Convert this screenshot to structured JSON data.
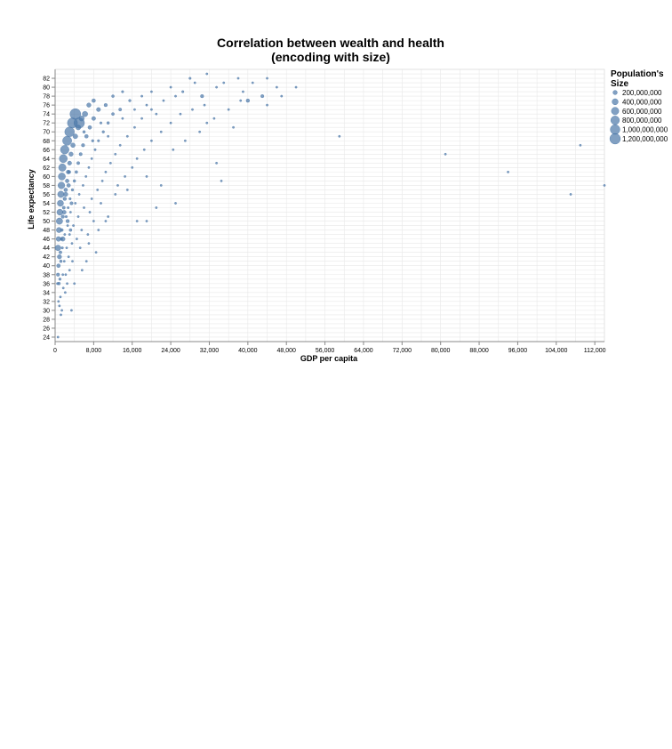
{
  "colors": {
    "mark": "#4c78a8",
    "grid": "#e8e8e8",
    "axis": "#888888",
    "text": "#000000"
  },
  "chart_data": {
    "type": "scatter",
    "title_line1": "Correlation between wealth and health",
    "title_line2": "(encoding with size)",
    "xlabel": "GDP per capita",
    "ylabel": "Life expectancy",
    "xlim": [
      0,
      114000
    ],
    "ylim": [
      23,
      84
    ],
    "x_ticks": [
      0,
      8000,
      16000,
      24000,
      32000,
      40000,
      48000,
      56000,
      64000,
      72000,
      80000,
      88000,
      96000,
      104000,
      112000
    ],
    "x_tick_labels": [
      "0",
      "8,000",
      "16,000",
      "24,000",
      "32,000",
      "40,000",
      "48,000",
      "56,000",
      "64,000",
      "72,000",
      "80,000",
      "88,000",
      "96,000",
      "104,000",
      "112,000"
    ],
    "y_ticks": [
      24,
      26,
      28,
      30,
      32,
      34,
      36,
      38,
      40,
      42,
      44,
      46,
      48,
      50,
      52,
      54,
      56,
      58,
      60,
      62,
      64,
      66,
      68,
      70,
      72,
      74,
      76,
      78,
      80,
      82
    ],
    "y_tick_labels": [
      "24",
      "26",
      "28",
      "30",
      "32",
      "34",
      "36",
      "38",
      "40",
      "42",
      "44",
      "46",
      "48",
      "50",
      "52",
      "54",
      "56",
      "58",
      "60",
      "62",
      "64",
      "66",
      "68",
      "70",
      "72",
      "74",
      "76",
      "78",
      "80",
      "82"
    ],
    "legend": {
      "title_line1": "Population's",
      "title_line2": "Size",
      "position": "right",
      "entries": [
        {
          "label": "200,000,000",
          "value": 200000000
        },
        {
          "label": "400,000,000",
          "value": 400000000
        },
        {
          "label": "600,000,000",
          "value": 600000000
        },
        {
          "label": "800,000,000",
          "value": 800000000
        },
        {
          "label": "1,000,000,000",
          "value": 1000000000
        },
        {
          "label": "1,200,000,000",
          "value": 1200000000
        }
      ]
    },
    "size_domain": [
      0,
      1300000000
    ],
    "points": [
      [
        600,
        24,
        8000000
      ],
      [
        1200,
        29,
        15000000
      ],
      [
        1400,
        30,
        20000000
      ],
      [
        900,
        31,
        30000000
      ],
      [
        3400,
        30,
        10000000
      ],
      [
        700,
        32,
        40000000
      ],
      [
        1100,
        33,
        25000000
      ],
      [
        2100,
        34,
        12000000
      ],
      [
        1700,
        35,
        18000000
      ],
      [
        500,
        36,
        60000000
      ],
      [
        800,
        36,
        90000000
      ],
      [
        2500,
        36,
        15000000
      ],
      [
        4000,
        36,
        10000000
      ],
      [
        600,
        38,
        120000000
      ],
      [
        1000,
        37,
        70000000
      ],
      [
        1600,
        38,
        35000000
      ],
      [
        3000,
        39,
        20000000
      ],
      [
        5600,
        39,
        10000000
      ],
      [
        2200,
        38,
        15000000
      ],
      [
        700,
        40,
        150000000
      ],
      [
        1200,
        41,
        80000000
      ],
      [
        900,
        42,
        200000000
      ],
      [
        1900,
        41,
        40000000
      ],
      [
        2800,
        42,
        25000000
      ],
      [
        6500,
        41,
        12000000
      ],
      [
        3600,
        41,
        18000000
      ],
      [
        600,
        44,
        350000000
      ],
      [
        1100,
        43,
        100000000
      ],
      [
        1500,
        44,
        60000000
      ],
      [
        2400,
        44,
        30000000
      ],
      [
        3500,
        45,
        20000000
      ],
      [
        5200,
        44,
        12000000
      ],
      [
        8500,
        43,
        10000000
      ],
      [
        7000,
        45,
        8000000
      ],
      [
        700,
        46,
        250000000
      ],
      [
        1300,
        46,
        80000000
      ],
      [
        2000,
        47,
        50000000
      ],
      [
        3000,
        47,
        30000000
      ],
      [
        4500,
        46,
        20000000
      ],
      [
        6800,
        47,
        14000000
      ],
      [
        9000,
        48,
        10000000
      ],
      [
        800,
        48,
        300000000
      ],
      [
        1400,
        48,
        90000000
      ],
      [
        2600,
        49,
        40000000
      ],
      [
        3800,
        49,
        25000000
      ],
      [
        5500,
        48,
        15000000
      ],
      [
        8000,
        50,
        12000000
      ],
      [
        10500,
        50,
        10000000
      ],
      [
        900,
        50,
        450000000
      ],
      [
        1600,
        51,
        120000000
      ],
      [
        2300,
        51,
        60000000
      ],
      [
        3200,
        52,
        35000000
      ],
      [
        4800,
        51,
        22000000
      ],
      [
        7200,
        52,
        15000000
      ],
      [
        11000,
        51,
        10000000
      ],
      [
        17000,
        50,
        8000000
      ],
      [
        19000,
        50,
        8000000
      ],
      [
        1000,
        52,
        400000000
      ],
      [
        1800,
        53,
        100000000
      ],
      [
        2700,
        53,
        55000000
      ],
      [
        4200,
        54,
        30000000
      ],
      [
        6000,
        53,
        18000000
      ],
      [
        9500,
        54,
        12000000
      ],
      [
        21000,
        53,
        8000000
      ],
      [
        25000,
        54,
        8000000
      ],
      [
        1100,
        54,
        420000000
      ],
      [
        2000,
        55,
        130000000
      ],
      [
        3100,
        55,
        60000000
      ],
      [
        5000,
        56,
        30000000
      ],
      [
        7600,
        55,
        18000000
      ],
      [
        12500,
        56,
        12000000
      ],
      [
        15000,
        57,
        10000000
      ],
      [
        1200,
        56,
        450000000
      ],
      [
        2200,
        57,
        140000000
      ],
      [
        3600,
        57,
        70000000
      ],
      [
        5800,
        58,
        35000000
      ],
      [
        8800,
        57,
        20000000
      ],
      [
        13000,
        58,
        12000000
      ],
      [
        22000,
        58,
        9000000
      ],
      [
        34500,
        59,
        8000000
      ],
      [
        1300,
        58,
        500000000
      ],
      [
        2500,
        59,
        150000000
      ],
      [
        4000,
        59,
        80000000
      ],
      [
        6400,
        60,
        40000000
      ],
      [
        9800,
        59,
        22000000
      ],
      [
        14500,
        60,
        14000000
      ],
      [
        19000,
        60,
        10000000
      ],
      [
        107000,
        56,
        8000000
      ],
      [
        114000,
        58,
        8000000
      ],
      [
        1400,
        60,
        550000000
      ],
      [
        2700,
        61,
        160000000
      ],
      [
        4400,
        61,
        90000000
      ],
      [
        7000,
        62,
        45000000
      ],
      [
        10500,
        61,
        25000000
      ],
      [
        16000,
        62,
        15000000
      ],
      [
        94000,
        61,
        8000000
      ],
      [
        1500,
        62,
        600000000
      ],
      [
        3000,
        63,
        180000000
      ],
      [
        4800,
        63,
        100000000
      ],
      [
        7600,
        64,
        50000000
      ],
      [
        11500,
        63,
        28000000
      ],
      [
        17000,
        64,
        16000000
      ],
      [
        33500,
        63,
        8000000
      ],
      [
        81000,
        65,
        8000000
      ],
      [
        1700,
        64,
        700000000
      ],
      [
        3300,
        65,
        200000000
      ],
      [
        5300,
        65,
        110000000
      ],
      [
        8300,
        66,
        55000000
      ],
      [
        12500,
        65,
        30000000
      ],
      [
        18500,
        66,
        18000000
      ],
      [
        24500,
        66,
        10000000
      ],
      [
        2000,
        66,
        800000000
      ],
      [
        3700,
        67,
        220000000
      ],
      [
        5800,
        67,
        120000000
      ],
      [
        9000,
        68,
        60000000
      ],
      [
        13500,
        67,
        32000000
      ],
      [
        20000,
        68,
        20000000
      ],
      [
        27000,
        68,
        12000000
      ],
      [
        109000,
        67,
        8000000
      ],
      [
        2500,
        68,
        900000000
      ],
      [
        4200,
        69,
        250000000
      ],
      [
        6500,
        69,
        140000000
      ],
      [
        10000,
        70,
        70000000
      ],
      [
        15000,
        69,
        36000000
      ],
      [
        22000,
        70,
        22000000
      ],
      [
        30000,
        70,
        14000000
      ],
      [
        59000,
        69,
        8000000
      ],
      [
        3000,
        70,
        1000000000
      ],
      [
        4800,
        71,
        280000000
      ],
      [
        7200,
        71,
        150000000
      ],
      [
        11000,
        72,
        80000000
      ],
      [
        16500,
        71,
        40000000
      ],
      [
        24000,
        72,
        25000000
      ],
      [
        31500,
        72,
        14000000
      ],
      [
        37000,
        71,
        10000000
      ],
      [
        3600,
        72,
        1100000000
      ],
      [
        5500,
        73,
        300000000
      ],
      [
        8000,
        73,
        170000000
      ],
      [
        12000,
        74,
        90000000
      ],
      [
        18000,
        73,
        45000000
      ],
      [
        26000,
        74,
        28000000
      ],
      [
        33000,
        73,
        16000000
      ],
      [
        4200,
        74,
        1250000000
      ],
      [
        6200,
        74,
        320000000
      ],
      [
        9000,
        75,
        180000000
      ],
      [
        13500,
        75,
        100000000
      ],
      [
        20000,
        75,
        50000000
      ],
      [
        28500,
        75,
        30000000
      ],
      [
        36000,
        75,
        18000000
      ],
      [
        5000,
        72,
        1200000000
      ],
      [
        7000,
        76,
        200000000
      ],
      [
        10500,
        76,
        120000000
      ],
      [
        15500,
        77,
        70000000
      ],
      [
        22500,
        77,
        40000000
      ],
      [
        31000,
        76,
        35000000
      ],
      [
        38500,
        77,
        20000000
      ],
      [
        44000,
        76,
        12000000
      ],
      [
        8000,
        77,
        140000000
      ],
      [
        12000,
        78,
        80000000
      ],
      [
        18000,
        78,
        50000000
      ],
      [
        25000,
        78,
        30000000
      ],
      [
        30500,
        78,
        120000000
      ],
      [
        40000,
        77,
        130000000
      ],
      [
        43000,
        78,
        110000000
      ],
      [
        47000,
        78,
        15000000
      ],
      [
        14000,
        79,
        60000000
      ],
      [
        20000,
        79,
        45000000
      ],
      [
        26500,
        79,
        60000000
      ],
      [
        33500,
        80,
        40000000
      ],
      [
        39000,
        79,
        25000000
      ],
      [
        46000,
        80,
        12000000
      ],
      [
        50000,
        80,
        10000000
      ],
      [
        24000,
        80,
        30000000
      ],
      [
        29000,
        81,
        35000000
      ],
      [
        35000,
        81,
        20000000
      ],
      [
        41000,
        81,
        15000000
      ],
      [
        28000,
        82,
        60000000
      ],
      [
        31500,
        83,
        45000000
      ],
      [
        38000,
        82,
        15000000
      ],
      [
        44000,
        82,
        12000000
      ],
      [
        6000,
        70,
        80000000
      ],
      [
        9500,
        72,
        60000000
      ],
      [
        14000,
        73,
        40000000
      ],
      [
        16500,
        75,
        30000000
      ],
      [
        19000,
        76,
        30000000
      ],
      [
        21000,
        74,
        25000000
      ],
      [
        11000,
        69,
        50000000
      ],
      [
        7800,
        68,
        70000000
      ],
      [
        2200,
        56,
        200000000
      ],
      [
        2800,
        58,
        150000000
      ],
      [
        3400,
        54,
        110000000
      ],
      [
        1900,
        52,
        160000000
      ],
      [
        2600,
        50,
        130000000
      ],
      [
        1600,
        46,
        220000000
      ],
      [
        3200,
        48,
        90000000
      ],
      [
        2900,
        61,
        120000000
      ]
    ]
  }
}
